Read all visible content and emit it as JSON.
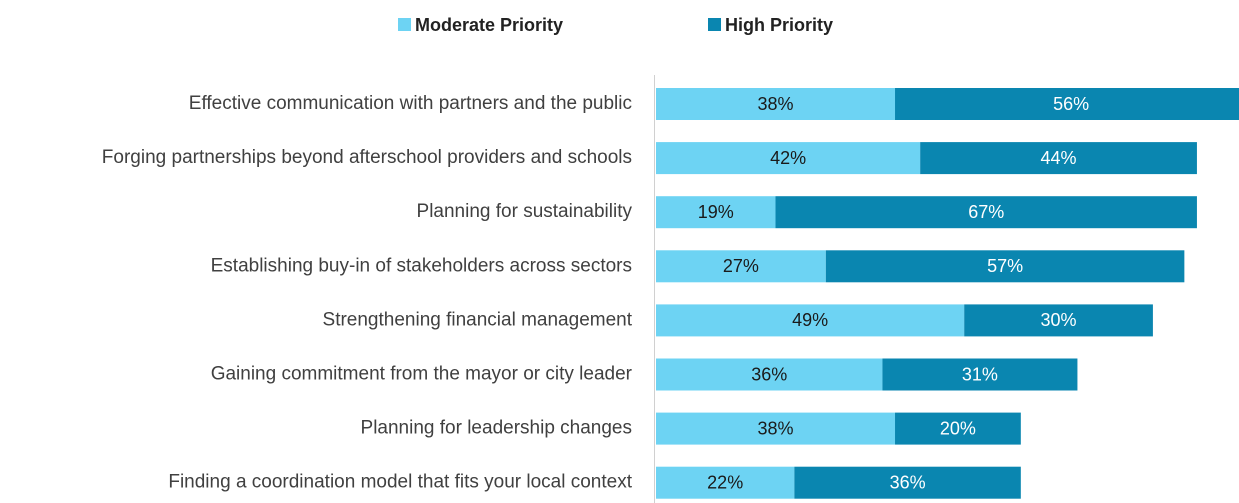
{
  "chart_data": {
    "type": "stacked-barh",
    "categories": [
      "Effective communication with partners and the public",
      "Forging partnerships beyond afterschool providers and schools",
      "Planning for sustainability",
      "Establishing buy-in of stakeholders across sectors",
      "Strengthening financial management",
      "Gaining commitment from the mayor or city leader",
      "Planning for leadership changes",
      "Finding a coordination model that fits your local context"
    ],
    "series": [
      {
        "name": "Moderate Priority",
        "color": "#6dd3f3",
        "label_color": "#1a1a1a",
        "values": [
          38,
          42,
          19,
          27,
          49,
          36,
          38,
          22
        ],
        "value_labels": [
          "38%",
          "42%",
          "19%",
          "27%",
          "49%",
          "36%",
          "38%",
          "22%"
        ]
      },
      {
        "name": "High Priority",
        "color": "#0a86b0",
        "label_color": "#ffffff",
        "values": [
          56,
          44,
          67,
          57,
          30,
          31,
          20,
          36
        ],
        "value_labels": [
          "56%",
          "44%",
          "67%",
          "57%",
          "30%",
          "31%",
          "20%",
          "36%"
        ]
      }
    ],
    "legend": "top"
  }
}
